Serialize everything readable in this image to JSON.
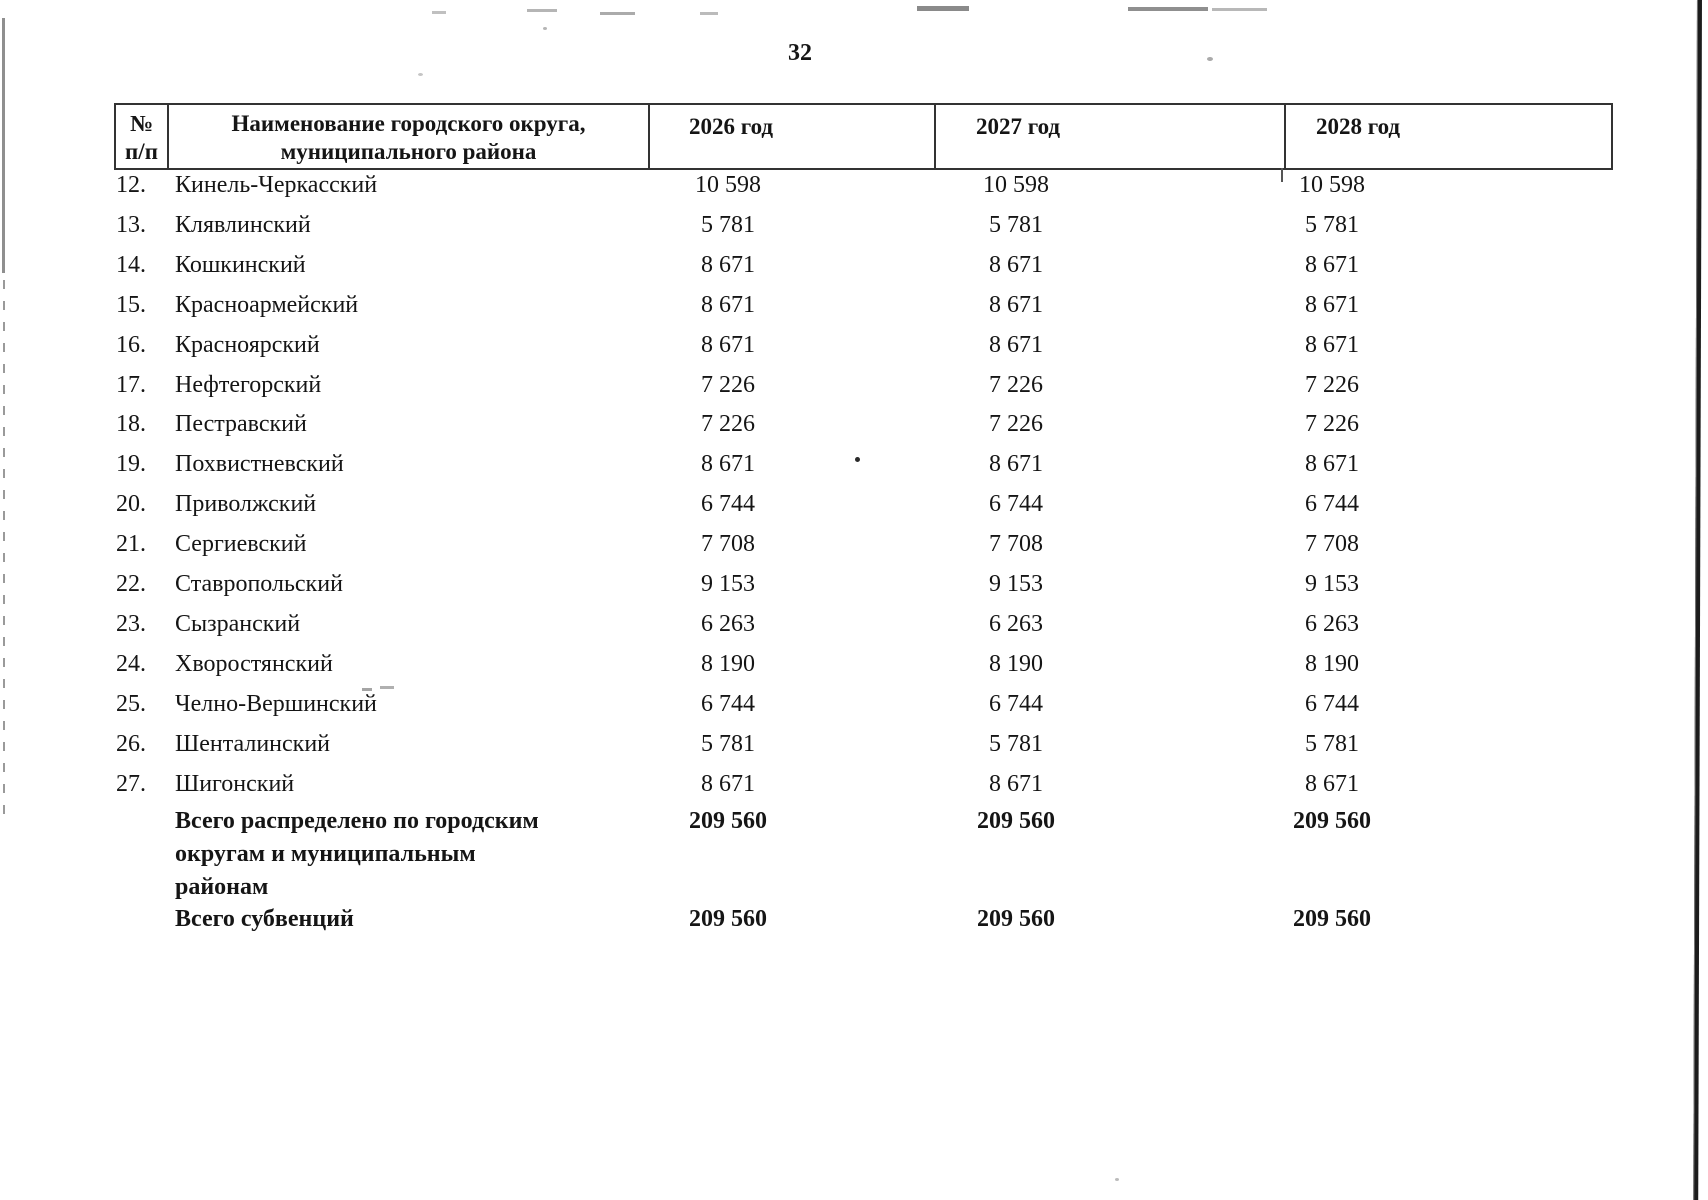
{
  "page": {
    "number": "32",
    "colors": {
      "ink": "#151515",
      "table_border": "#333333",
      "artifact_gray": "#8f8f8f"
    }
  },
  "table": {
    "headers": {
      "col_num": "№\nп/п",
      "col_name": "Наименование городского округа,\nмуниципального района",
      "col_2026": "2026 год",
      "col_2027": "2027 год",
      "col_2028": "2028 год"
    },
    "rows": [
      {
        "num": "12.",
        "name": "Кинель-Черкасский",
        "y2026": "10 598",
        "y2027": "10 598",
        "y2028": "10 598"
      },
      {
        "num": "13.",
        "name": "Клявлинский",
        "y2026": "5 781",
        "y2027": "5 781",
        "y2028": "5 781"
      },
      {
        "num": "14.",
        "name": "Кошкинский",
        "y2026": "8 671",
        "y2027": "8 671",
        "y2028": "8 671"
      },
      {
        "num": "15.",
        "name": "Красноармейский",
        "y2026": "8 671",
        "y2027": "8 671",
        "y2028": "8 671"
      },
      {
        "num": "16.",
        "name": "Красноярский",
        "y2026": "8 671",
        "y2027": "8 671",
        "y2028": "8 671"
      },
      {
        "num": "17.",
        "name": "Нефтегорский",
        "y2026": "7 226",
        "y2027": "7 226",
        "y2028": "7 226"
      },
      {
        "num": "18.",
        "name": "Пестравский",
        "y2026": "7 226",
        "y2027": "7 226",
        "y2028": "7 226"
      },
      {
        "num": "19.",
        "name": "Похвистневский",
        "y2026": "8 671",
        "y2027": "8 671",
        "y2028": "8 671"
      },
      {
        "num": "20.",
        "name": "Приволжский",
        "y2026": "6 744",
        "y2027": "6 744",
        "y2028": "6 744"
      },
      {
        "num": "21.",
        "name": "Сергиевский",
        "y2026": "7 708",
        "y2027": "7 708",
        "y2028": "7 708"
      },
      {
        "num": "22.",
        "name": "Ставропольский",
        "y2026": "9 153",
        "y2027": "9 153",
        "y2028": "9 153"
      },
      {
        "num": "23.",
        "name": "Сызранский",
        "y2026": "6 263",
        "y2027": "6 263",
        "y2028": "6 263"
      },
      {
        "num": "24.",
        "name": "Хворостянский",
        "y2026": "8 190",
        "y2027": "8 190",
        "y2028": "8 190"
      },
      {
        "num": "25.",
        "name": "Челно-Вершинский",
        "y2026": "6 744",
        "y2027": "6 744",
        "y2028": "6 744"
      },
      {
        "num": "26.",
        "name": "Шенталинский",
        "y2026": "5 781",
        "y2027": "5 781",
        "y2028": "5 781"
      },
      {
        "num": "27.",
        "name": "Шигонский",
        "y2026": "8 671",
        "y2027": "8 671",
        "y2028": "8 671"
      }
    ],
    "totals": [
      {
        "label": "Всего распределено по городским\nокругам и муниципальным\nрайонам",
        "y2026": "209 560",
        "y2027": "209 560",
        "y2028": "209 560"
      },
      {
        "label": "Всего субвенций",
        "y2026": "209 560",
        "y2027": "209 560",
        "y2028": "209 560"
      }
    ]
  }
}
